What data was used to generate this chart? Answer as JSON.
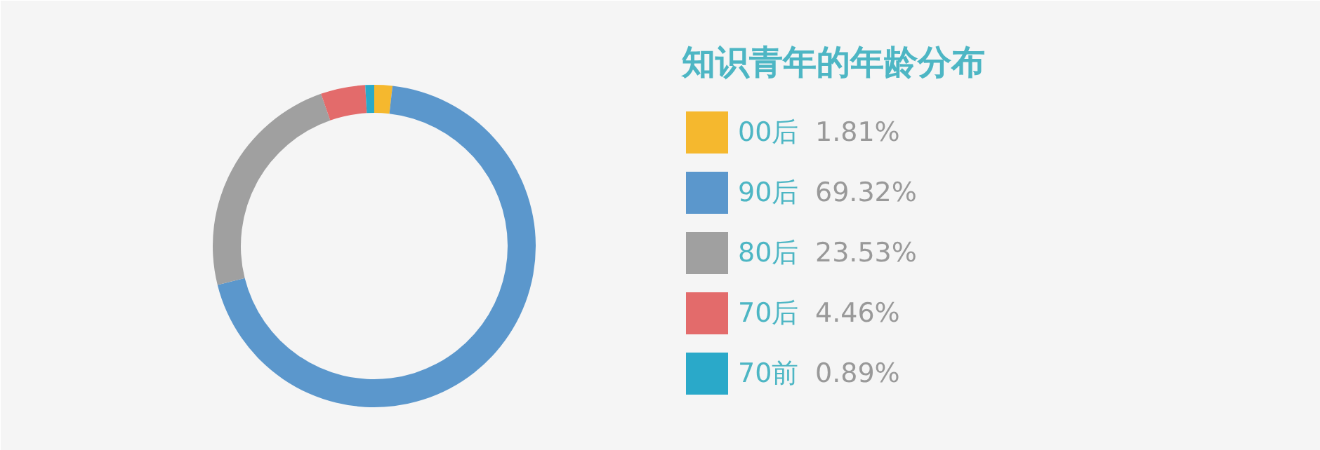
{
  "chart_data": {
    "type": "donut",
    "title": "知识青年的年龄分布",
    "categories": [
      "00后",
      "90后",
      "80后",
      "70后",
      "70前"
    ],
    "values": [
      1.81,
      69.32,
      23.53,
      4.46,
      0.89
    ],
    "colors": [
      "#f5b82e",
      "#5b97cc",
      "#a0a0a0",
      "#e36b6b",
      "#2aa9c9"
    ],
    "value_labels": [
      "1.81%",
      "69.32%",
      "23.53%",
      "4.46%",
      "0.89%"
    ],
    "legend": "right"
  }
}
